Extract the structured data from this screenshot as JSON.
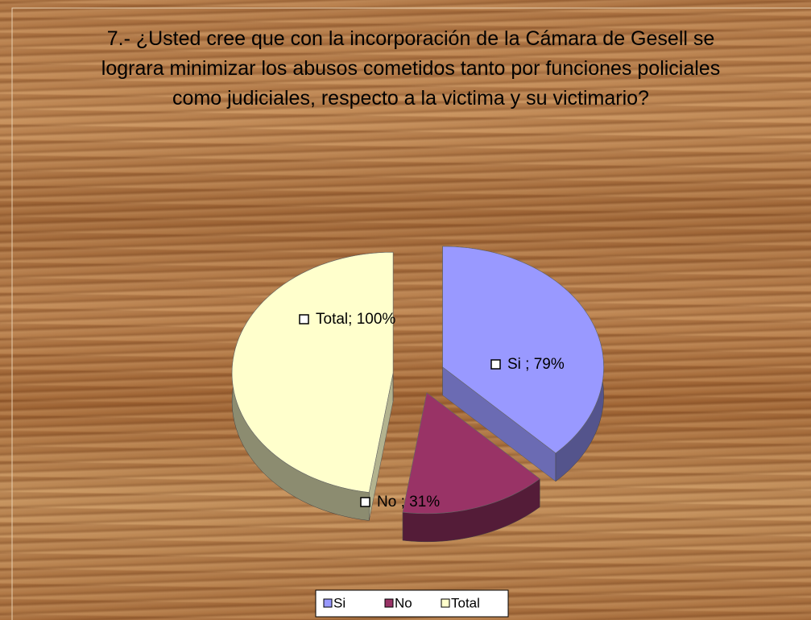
{
  "chart_data": {
    "type": "pie",
    "title": "7.- ¿Usted cree que con la incorporación de la Cámara de Gesell se lograra minimizar los abusos cometidos tanto por funciones policiales como judiciales, respecto a la victima y su victimario?",
    "categories": [
      "Si",
      "No",
      "Total"
    ],
    "values": [
      79,
      31,
      100
    ],
    "value_labels": [
      "Si ; 79%",
      "No ; 31%",
      "Total; 100%"
    ],
    "colors": [
      "#9999ff",
      "#993366",
      "#ffffcc"
    ],
    "legend": "bottom"
  }
}
